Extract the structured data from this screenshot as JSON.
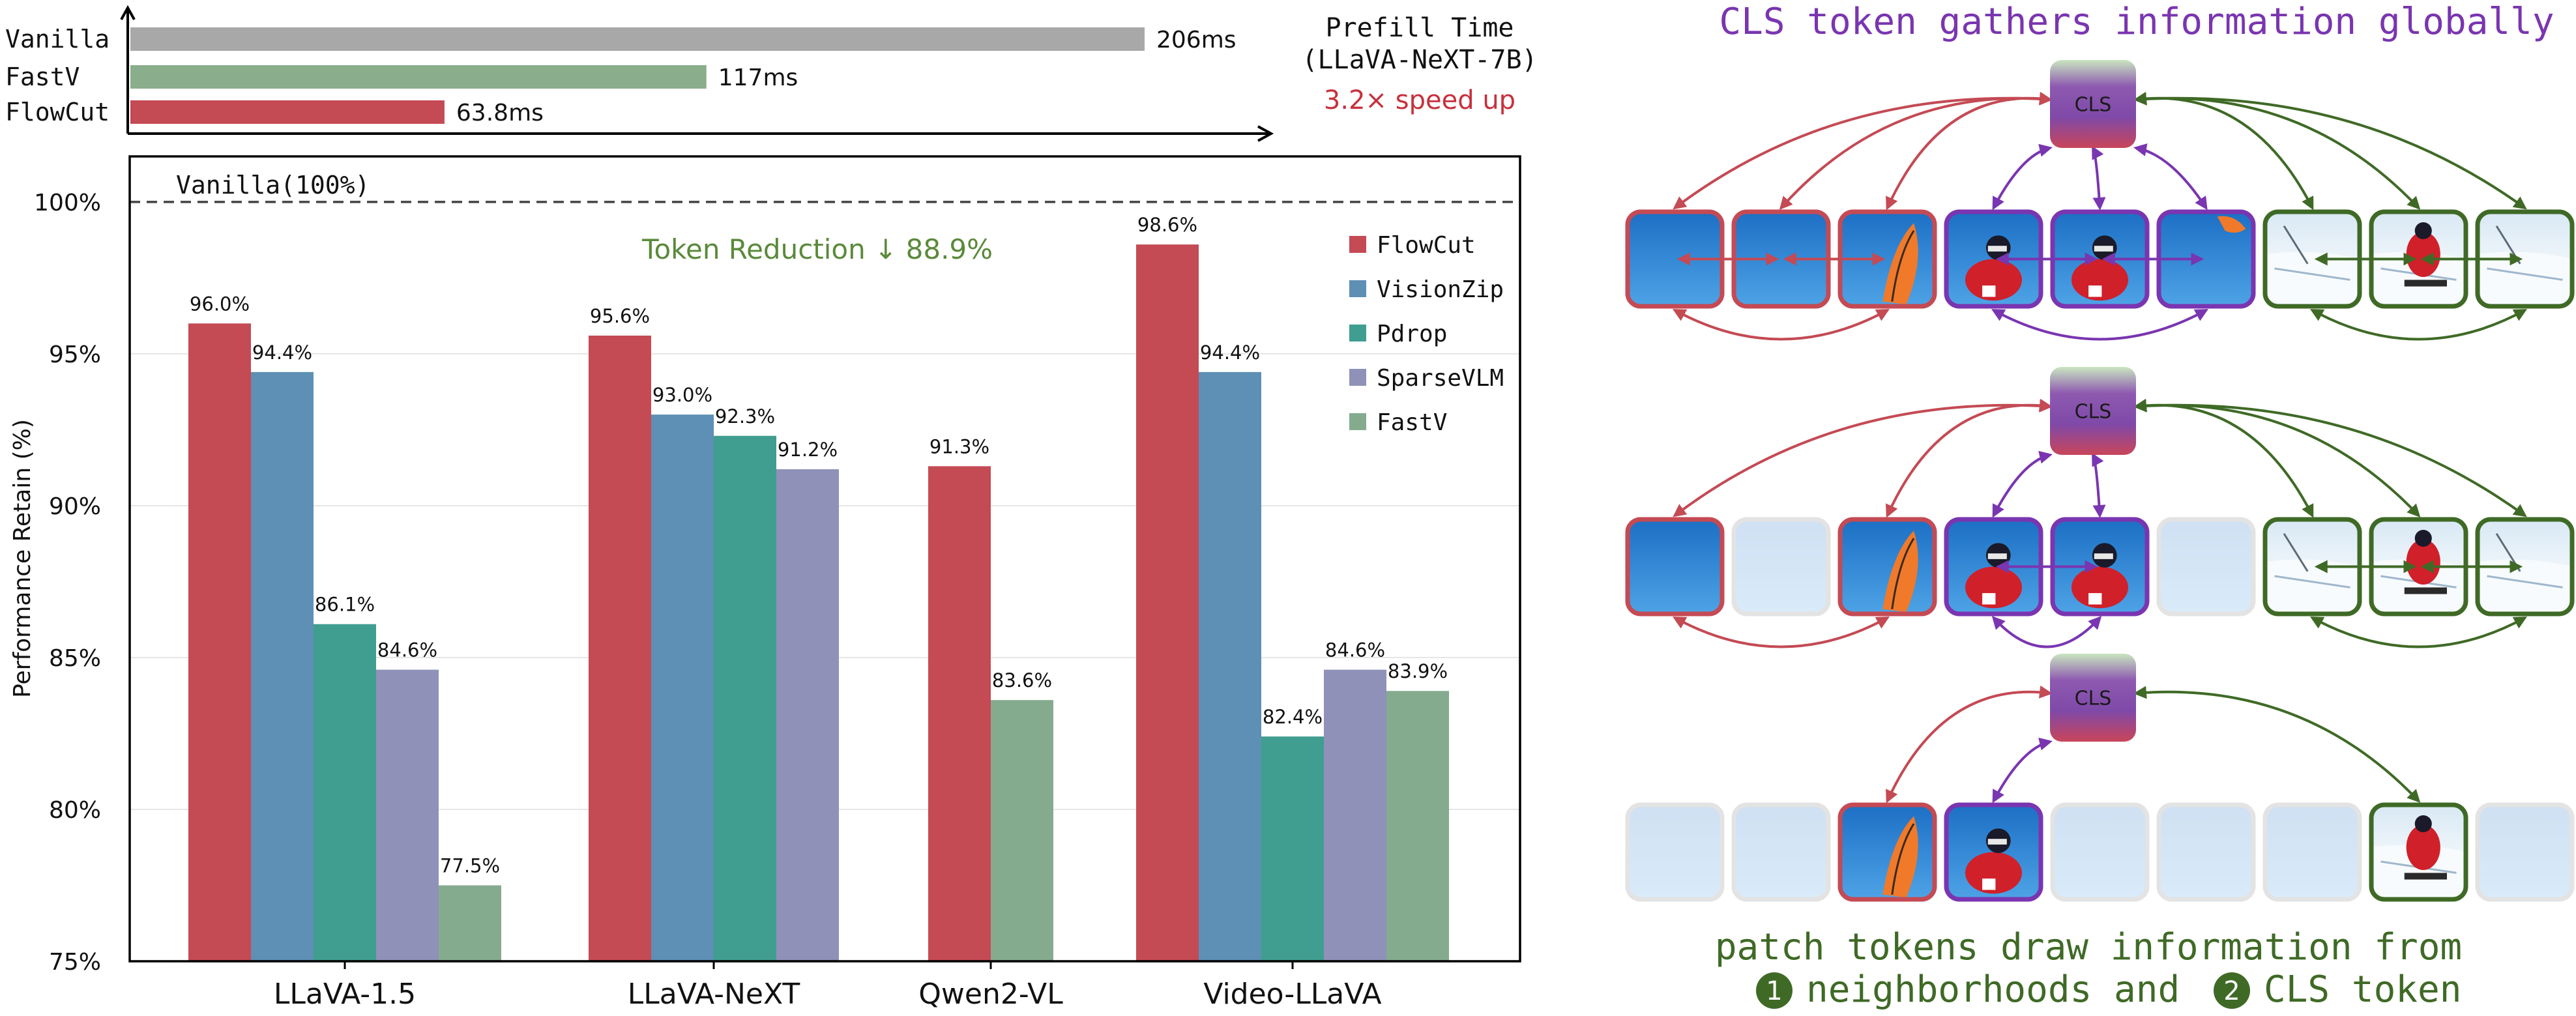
{
  "prefill_chart": {
    "title_line1": "Prefill Time",
    "title_line2": "(LLaVA-NeXT-7B)",
    "speedup": "3.2× speed up",
    "bars": [
      {
        "name": "Vanilla",
        "value_ms": 206,
        "label": "206ms",
        "color": "#a8a8a8"
      },
      {
        "name": "FastV",
        "value_ms": 117,
        "label": "117ms",
        "color": "#8aae8c"
      },
      {
        "name": "FlowCut",
        "value_ms": 63.8,
        "label": "63.8ms",
        "color": "#c44a54"
      }
    ]
  },
  "chart_data": {
    "type": "bar",
    "ylabel": "Performance Retain (%)",
    "ylim": [
      75,
      101.5
    ],
    "yticks": [
      "75%",
      "80%",
      "85%",
      "90%",
      "95%",
      "100%"
    ],
    "baseline_label": "Vanilla(100%)",
    "annotation": "Token Reduction ↓ 88.9%",
    "grid": true,
    "legend_position": "top-right",
    "categories": [
      "LLaVA-1.5",
      "LLaVA-NeXT",
      "Qwen2-VL",
      "Video-LLaVA"
    ],
    "series": [
      {
        "name": "FlowCut",
        "color": "#c44a54",
        "values": [
          96.0,
          95.6,
          91.3,
          98.6
        ],
        "labels": [
          "96.0%",
          "95.6%",
          "91.3%",
          "98.6%"
        ]
      },
      {
        "name": "VisionZip",
        "color": "#5e8fb4",
        "values": [
          94.4,
          93.0,
          null,
          94.4
        ],
        "labels": [
          "94.4%",
          "93.0%",
          "",
          "94.4%"
        ]
      },
      {
        "name": "Pdrop",
        "color": "#3f9e90",
        "values": [
          86.1,
          92.3,
          null,
          82.4
        ],
        "labels": [
          "86.1%",
          "92.3%",
          "",
          "82.4%"
        ]
      },
      {
        "name": "SparseVLM",
        "color": "#8f91b8",
        "values": [
          84.6,
          91.2,
          null,
          84.6
        ],
        "labels": [
          "84.6%",
          "91.2%",
          "",
          "84.6%"
        ]
      },
      {
        "name": "FastV",
        "color": "#85ab8e",
        "values": [
          77.5,
          null,
          83.6,
          83.9
        ],
        "labels": [
          "77.5%",
          "",
          "83.6%",
          "83.9%"
        ]
      }
    ]
  },
  "diagram": {
    "title": "CLS token gathers information globally",
    "cls_label": "CLS",
    "caption_line1": "patch tokens draw information from",
    "caption_num1": "1",
    "caption_part1": "neighborhoods and",
    "caption_num2": "2",
    "caption_part2": "CLS token",
    "colors": {
      "red": "#c44a54",
      "purple": "#7a35b0",
      "green": "#3f6a26",
      "title": "#7a35b0",
      "caption": "#3f6a26"
    },
    "rows": [
      {
        "tiles": [
          {
            "group": "red",
            "scene": "sky",
            "faded": false
          },
          {
            "group": "red",
            "scene": "sky",
            "faded": false
          },
          {
            "group": "red",
            "scene": "kite",
            "faded": false
          },
          {
            "group": "purple",
            "scene": "skier",
            "faded": false
          },
          {
            "group": "purple",
            "scene": "skier",
            "faded": false
          },
          {
            "group": "purple",
            "scene": "kite-small",
            "faded": false
          },
          {
            "group": "green",
            "scene": "snow",
            "faded": false
          },
          {
            "group": "green",
            "scene": "snow-skier",
            "faded": false
          },
          {
            "group": "green",
            "scene": "snow",
            "faded": false
          }
        ]
      },
      {
        "tiles": [
          {
            "group": "red",
            "scene": "sky",
            "faded": false
          },
          {
            "group": "red",
            "scene": "sky",
            "faded": true
          },
          {
            "group": "red",
            "scene": "kite",
            "faded": false
          },
          {
            "group": "purple",
            "scene": "skier",
            "faded": false
          },
          {
            "group": "purple",
            "scene": "skier",
            "faded": false
          },
          {
            "group": "purple",
            "scene": "kite-small",
            "faded": true
          },
          {
            "group": "green",
            "scene": "snow",
            "faded": false
          },
          {
            "group": "green",
            "scene": "snow-skier",
            "faded": false
          },
          {
            "group": "green",
            "scene": "snow",
            "faded": false
          }
        ]
      },
      {
        "tiles": [
          {
            "group": "red",
            "scene": "sky",
            "faded": true
          },
          {
            "group": "red",
            "scene": "sky",
            "faded": true
          },
          {
            "group": "red",
            "scene": "kite",
            "faded": false
          },
          {
            "group": "purple",
            "scene": "skier",
            "faded": false
          },
          {
            "group": "purple",
            "scene": "skier",
            "faded": true
          },
          {
            "group": "purple",
            "scene": "kite-small",
            "faded": true
          },
          {
            "group": "green",
            "scene": "snow",
            "faded": true
          },
          {
            "group": "green",
            "scene": "snow-skier",
            "faded": false
          },
          {
            "group": "green",
            "scene": "snow",
            "faded": true
          }
        ]
      }
    ]
  }
}
